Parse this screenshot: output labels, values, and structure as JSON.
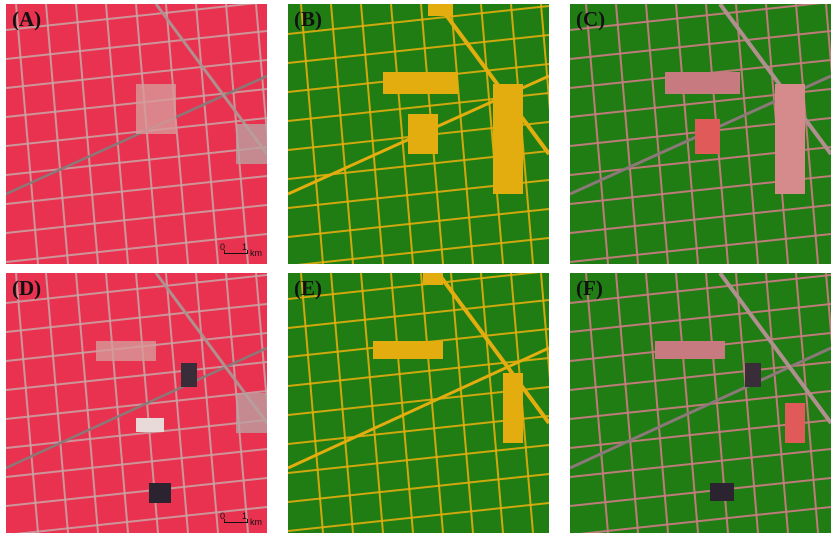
{
  "figure": {
    "panels": [
      {
        "id": "A",
        "label": "(A)",
        "kind": "false-color-image",
        "scale": {
          "zero": "0",
          "one": "1",
          "unit": "km"
        }
      },
      {
        "id": "B",
        "label": "(B)",
        "kind": "classification-map"
      },
      {
        "id": "C",
        "label": "(C)",
        "kind": "overlay"
      },
      {
        "id": "D",
        "label": "(D)",
        "kind": "false-color-image",
        "scale": {
          "zero": "0",
          "one": "1",
          "unit": "km"
        }
      },
      {
        "id": "E",
        "label": "(E)",
        "kind": "classification-map"
      },
      {
        "id": "F",
        "label": "(F)",
        "kind": "overlay"
      }
    ],
    "colors": {
      "false_color_field": "#e8324f",
      "false_color_road": "#c9a6a6",
      "class_crop": "#1f7d13",
      "class_noncrop": "#e3ad0f",
      "overlay_bg": "#c77b80"
    }
  }
}
